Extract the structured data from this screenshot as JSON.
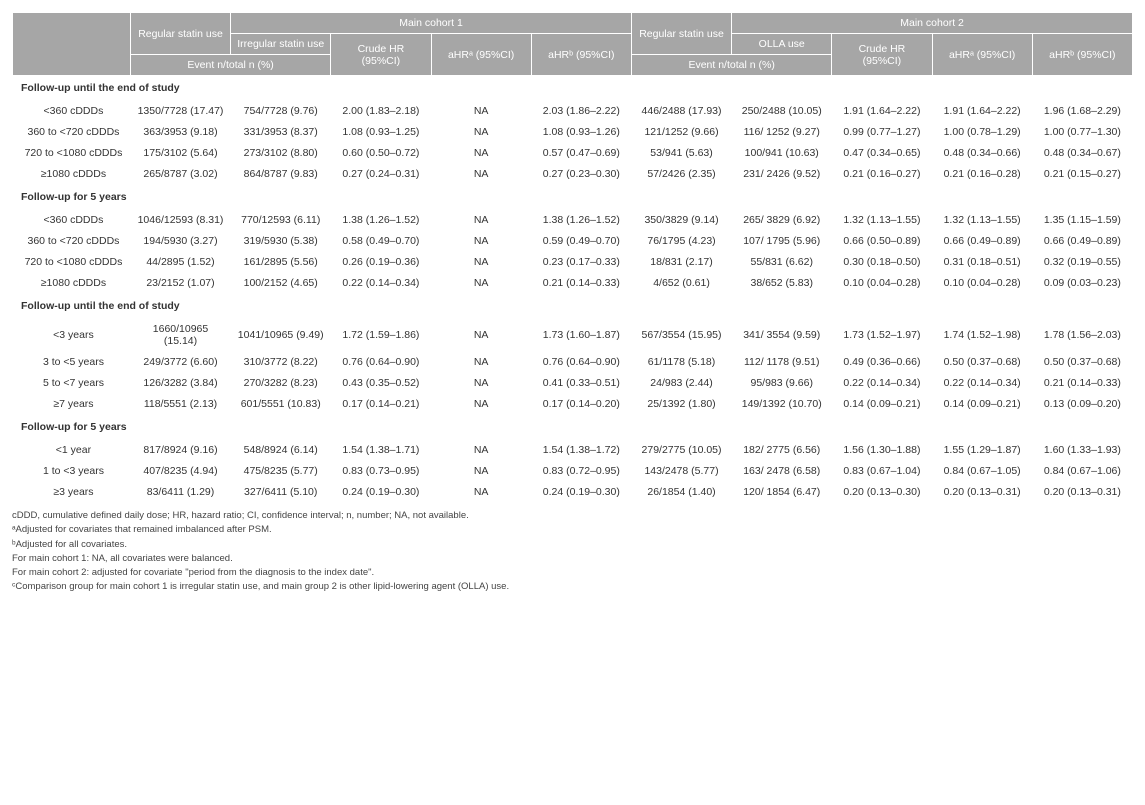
{
  "header": {
    "blank": "",
    "regular1": "Regular statin use",
    "cohort1": "Main cohort 1",
    "regular2": "Regular statin use",
    "cohort2": "Main cohort 2",
    "irregular": "Irregular statin use",
    "crudeHR": "Crude HR (95%CI)",
    "aHRa": "aHRᵃ (95%CI)",
    "aHRb": "aHRᵇ (95%CI)",
    "olla": "OLLA use",
    "event1": "Event n/total n (%)",
    "event2": "Event n/total n (%)"
  },
  "sections": {
    "s1": "Follow-up until the end of study",
    "s2": "Follow-up for 5 years",
    "s3": "Follow-up until the end of study",
    "s4": "Follow-up for 5 years"
  },
  "rows": {
    "r1": {
      "label": "<360 cDDDs",
      "reg1": "1350/7728 (17.47)",
      "irr": "754/7728 (9.76)",
      "cr1": "2.00 (1.83–2.18)",
      "a1": "NA",
      "b1": "2.03 (1.86–2.22)",
      "reg2": "446/2488 (17.93)",
      "olla": "250/2488 (10.05)",
      "cr2": "1.91 (1.64–2.22)",
      "a2": "1.91 (1.64–2.22)",
      "b2": "1.96 (1.68–2.29)"
    },
    "r2": {
      "label": "360 to <720 cDDDs",
      "reg1": "363/3953 (9.18)",
      "irr": "331/3953 (8.37)",
      "cr1": "1.08 (0.93–1.25)",
      "a1": "NA",
      "b1": "1.08 (0.93–1.26)",
      "reg2": "121/1252 (9.66)",
      "olla": "116/ 1252 (9.27)",
      "cr2": "0.99 (0.77–1.27)",
      "a2": "1.00 (0.78–1.29)",
      "b2": "1.00 (0.77–1.30)"
    },
    "r3": {
      "label": "720 to <1080 cDDDs",
      "reg1": "175/3102 (5.64)",
      "irr": "273/3102 (8.80)",
      "cr1": "0.60 (0.50–0.72)",
      "a1": "NA",
      "b1": "0.57 (0.47–0.69)",
      "reg2": "53/941 (5.63)",
      "olla": "100/941 (10.63)",
      "cr2": "0.47 (0.34–0.65)",
      "a2": "0.48 (0.34–0.66)",
      "b2": "0.48 (0.34–0.67)"
    },
    "r4": {
      "label": "≥1080 cDDDs",
      "reg1": "265/8787 (3.02)",
      "irr": "864/8787 (9.83)",
      "cr1": "0.27 (0.24–0.31)",
      "a1": "NA",
      "b1": "0.27 (0.23–0.30)",
      "reg2": "57/2426 (2.35)",
      "olla": "231/ 2426 (9.52)",
      "cr2": "0.21 (0.16–0.27)",
      "a2": "0.21 (0.16–0.28)",
      "b2": "0.21 (0.15–0.27)"
    },
    "r5": {
      "label": "<360 cDDDs",
      "reg1": "1046/12593 (8.31)",
      "irr": "770/12593 (6.11)",
      "cr1": "1.38 (1.26–1.52)",
      "a1": "NA",
      "b1": "1.38 (1.26–1.52)",
      "reg2": "350/3829 (9.14)",
      "olla": "265/ 3829 (6.92)",
      "cr2": "1.32 (1.13–1.55)",
      "a2": "1.32 (1.13–1.55)",
      "b2": "1.35 (1.15–1.59)"
    },
    "r6": {
      "label": "360 to <720 cDDDs",
      "reg1": "194/5930 (3.27)",
      "irr": "319/5930 (5.38)",
      "cr1": "0.58 (0.49–0.70)",
      "a1": "NA",
      "b1": "0.59 (0.49–0.70)",
      "reg2": "76/1795 (4.23)",
      "olla": "107/ 1795 (5.96)",
      "cr2": "0.66 (0.50–0.89)",
      "a2": "0.66 (0.49–0.89)",
      "b2": "0.66 (0.49–0.89)"
    },
    "r7": {
      "label": "720 to <1080 cDDDs",
      "reg1": "44/2895 (1.52)",
      "irr": "161/2895 (5.56)",
      "cr1": "0.26 (0.19–0.36)",
      "a1": "NA",
      "b1": "0.23 (0.17–0.33)",
      "reg2": "18/831 (2.17)",
      "olla": "55/831 (6.62)",
      "cr2": "0.30 (0.18–0.50)",
      "a2": "0.31 (0.18–0.51)",
      "b2": "0.32 (0.19–0.55)"
    },
    "r8": {
      "label": "≥1080 cDDDs",
      "reg1": "23/2152 (1.07)",
      "irr": "100/2152 (4.65)",
      "cr1": "0.22 (0.14–0.34)",
      "a1": "NA",
      "b1": "0.21 (0.14–0.33)",
      "reg2": "4/652 (0.61)",
      "olla": "38/652 (5.83)",
      "cr2": "0.10 (0.04–0.28)",
      "a2": "0.10 (0.04–0.28)",
      "b2": "0.09 (0.03–0.23)"
    },
    "r9": {
      "label": "<3 years",
      "reg1": "1660/10965 (15.14)",
      "irr": "1041/10965 (9.49)",
      "cr1": "1.72 (1.59–1.86)",
      "a1": "NA",
      "b1": "1.73 (1.60–1.87)",
      "reg2": "567/3554 (15.95)",
      "olla": "341/ 3554 (9.59)",
      "cr2": "1.73 (1.52–1.97)",
      "a2": "1.74 (1.52–1.98)",
      "b2": "1.78 (1.56–2.03)"
    },
    "r10": {
      "label": "3 to <5 years",
      "reg1": "249/3772 (6.60)",
      "irr": "310/3772 (8.22)",
      "cr1": "0.76 (0.64–0.90)",
      "a1": "NA",
      "b1": "0.76 (0.64–0.90)",
      "reg2": "61/1178 (5.18)",
      "olla": "112/ 1178 (9.51)",
      "cr2": "0.49 (0.36–0.66)",
      "a2": "0.50 (0.37–0.68)",
      "b2": "0.50 (0.37–0.68)"
    },
    "r11": {
      "label": "5 to <7 years",
      "reg1": "126/3282 (3.84)",
      "irr": "270/3282 (8.23)",
      "cr1": "0.43 (0.35–0.52)",
      "a1": "NA",
      "b1": "0.41 (0.33–0.51)",
      "reg2": "24/983 (2.44)",
      "olla": "95/983 (9.66)",
      "cr2": "0.22 (0.14–0.34)",
      "a2": "0.22 (0.14–0.34)",
      "b2": "0.21 (0.14–0.33)"
    },
    "r12": {
      "label": "≥7 years",
      "reg1": "118/5551 (2.13)",
      "irr": "601/5551 (10.83)",
      "cr1": "0.17 (0.14–0.21)",
      "a1": "NA",
      "b1": "0.17 (0.14–0.20)",
      "reg2": "25/1392 (1.80)",
      "olla": "149/1392 (10.70)",
      "cr2": "0.14 (0.09–0.21)",
      "a2": "0.14 (0.09–0.21)",
      "b2": "0.13 (0.09–0.20)"
    },
    "r13": {
      "label": "<1 year",
      "reg1": "817/8924 (9.16)",
      "irr": "548/8924 (6.14)",
      "cr1": "1.54 (1.38–1.71)",
      "a1": "NA",
      "b1": "1.54 (1.38–1.72)",
      "reg2": "279/2775 (10.05)",
      "olla": "182/ 2775 (6.56)",
      "cr2": "1.56 (1.30–1.88)",
      "a2": "1.55 (1.29–1.87)",
      "b2": "1.60 (1.33–1.93)"
    },
    "r14": {
      "label": "1 to <3 years",
      "reg1": "407/8235 (4.94)",
      "irr": "475/8235 (5.77)",
      "cr1": "0.83 (0.73–0.95)",
      "a1": "NA",
      "b1": "0.83 (0.72–0.95)",
      "reg2": "143/2478 (5.77)",
      "olla": "163/ 2478 (6.58)",
      "cr2": "0.83 (0.67–1.04)",
      "a2": "0.84 (0.67–1.05)",
      "b2": "0.84 (0.67–1.06)"
    },
    "r15": {
      "label": "≥3 years",
      "reg1": "83/6411 (1.29)",
      "irr": "327/6411 (5.10)",
      "cr1": "0.24 (0.19–0.30)",
      "a1": "NA",
      "b1": "0.24 (0.19–0.30)",
      "reg2": "26/1854 (1.40)",
      "olla": "120/ 1854 (6.47)",
      "cr2": "0.20 (0.13–0.30)",
      "a2": "0.20 (0.13–0.31)",
      "b2": "0.20 (0.13–0.31)"
    }
  },
  "footnotes": {
    "f1": "cDDD, cumulative defined daily dose; HR, hazard ratio; CI, confidence interval; n, number; NA, not available.",
    "f2": "ᵃAdjusted for covariates that remained imbalanced after PSM.",
    "f3": "ᵇAdjusted for all covariates.",
    "f4": "For main cohort 1: NA, all covariates were balanced.",
    "f5": "For main cohort 2: adjusted for covariate \"period from the diagnosis to the index date\".",
    "f6": "ᶜComparison group for main cohort 1 is irregular statin use, and main group 2 is other lipid-lowering agent (OLLA) use."
  }
}
